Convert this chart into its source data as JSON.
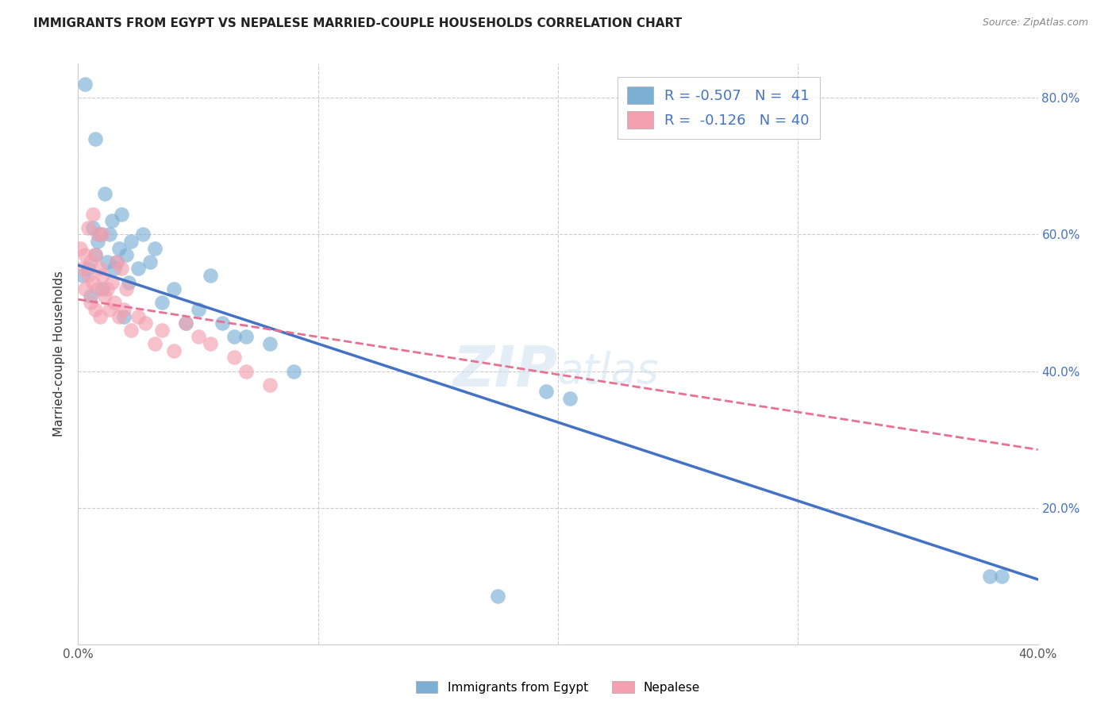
{
  "title": "IMMIGRANTS FROM EGYPT VS NEPALESE MARRIED-COUPLE HOUSEHOLDS CORRELATION CHART",
  "source": "Source: ZipAtlas.com",
  "ylabel_left": "Married-couple Households",
  "legend1_label": "Immigrants from Egypt",
  "legend2_label": "Nepalese",
  "R1": -0.507,
  "N1": 41,
  "R2": -0.126,
  "N2": 40,
  "color_blue": "#7bafd4",
  "color_pink": "#f4a0b0",
  "color_blue_line": "#4472c4",
  "color_pink_line": "#e87090",
  "xlim": [
    0.0,
    0.4
  ],
  "ylim": [
    0.0,
    0.85
  ],
  "egypt_x": [
    0.002,
    0.003,
    0.004,
    0.005,
    0.006,
    0.007,
    0.007,
    0.008,
    0.009,
    0.01,
    0.011,
    0.012,
    0.013,
    0.014,
    0.015,
    0.016,
    0.017,
    0.018,
    0.019,
    0.02,
    0.021,
    0.022,
    0.025,
    0.027,
    0.03,
    0.032,
    0.035,
    0.04,
    0.045,
    0.05,
    0.055,
    0.06,
    0.065,
    0.07,
    0.08,
    0.09,
    0.195,
    0.205,
    0.38,
    0.385,
    0.175
  ],
  "egypt_y": [
    0.54,
    0.82,
    0.55,
    0.51,
    0.61,
    0.57,
    0.74,
    0.59,
    0.6,
    0.52,
    0.66,
    0.56,
    0.6,
    0.62,
    0.55,
    0.56,
    0.58,
    0.63,
    0.48,
    0.57,
    0.53,
    0.59,
    0.55,
    0.6,
    0.56,
    0.58,
    0.5,
    0.52,
    0.47,
    0.49,
    0.54,
    0.47,
    0.45,
    0.45,
    0.44,
    0.4,
    0.37,
    0.36,
    0.1,
    0.1,
    0.07
  ],
  "nepal_x": [
    0.001,
    0.002,
    0.003,
    0.003,
    0.004,
    0.004,
    0.005,
    0.005,
    0.006,
    0.006,
    0.007,
    0.007,
    0.008,
    0.008,
    0.009,
    0.009,
    0.01,
    0.01,
    0.011,
    0.012,
    0.013,
    0.014,
    0.015,
    0.016,
    0.017,
    0.018,
    0.019,
    0.02,
    0.022,
    0.025,
    0.028,
    0.032,
    0.035,
    0.04,
    0.045,
    0.05,
    0.055,
    0.065,
    0.07,
    0.08
  ],
  "nepal_y": [
    0.58,
    0.55,
    0.52,
    0.57,
    0.54,
    0.61,
    0.5,
    0.56,
    0.53,
    0.63,
    0.49,
    0.57,
    0.52,
    0.6,
    0.48,
    0.55,
    0.54,
    0.6,
    0.51,
    0.52,
    0.49,
    0.53,
    0.5,
    0.56,
    0.48,
    0.55,
    0.49,
    0.52,
    0.46,
    0.48,
    0.47,
    0.44,
    0.46,
    0.43,
    0.47,
    0.45,
    0.44,
    0.42,
    0.4,
    0.38
  ],
  "blue_line_x": [
    0.0,
    0.4
  ],
  "blue_line_y": [
    0.555,
    0.095
  ],
  "pink_line_x": [
    0.0,
    0.4
  ],
  "pink_line_y": [
    0.505,
    0.285
  ]
}
